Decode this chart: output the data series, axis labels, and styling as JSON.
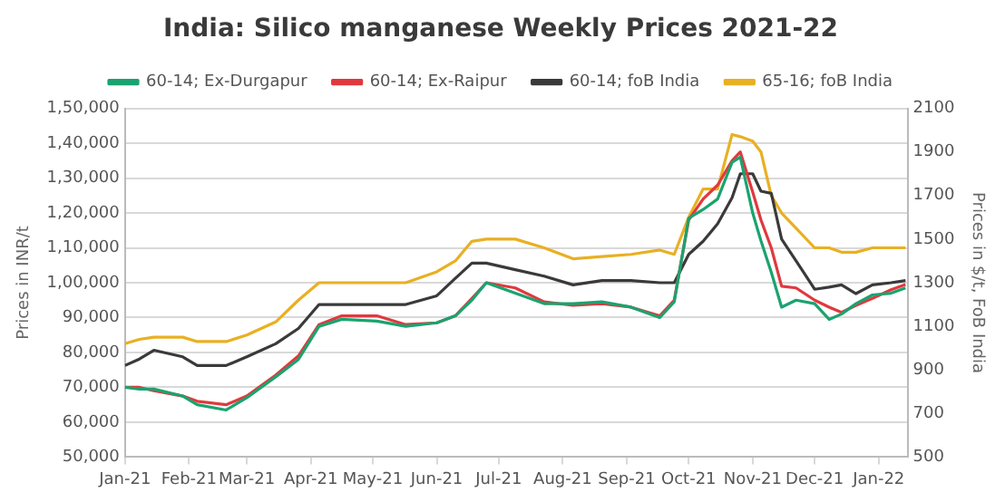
{
  "chart_data": {
    "type": "line",
    "title": "India: Silico manganese Weekly Prices 2021-22",
    "ylabel": "Prices in INR/t",
    "y2label": "Prices in $/t, FoB India",
    "x": [
      "2021-01-01",
      "2021-01-08",
      "2021-01-15",
      "2021-01-29",
      "2021-02-05",
      "2021-02-19",
      "2021-03-01",
      "2021-03-15",
      "2021-03-26",
      "2021-04-05",
      "2021-04-16",
      "2021-05-03",
      "2021-05-17",
      "2021-06-01",
      "2021-06-10",
      "2021-06-18",
      "2021-06-25",
      "2021-07-09",
      "2021-07-23",
      "2021-08-06",
      "2021-08-20",
      "2021-09-03",
      "2021-09-17",
      "2021-09-24",
      "2021-10-01",
      "2021-10-08",
      "2021-10-15",
      "2021-10-22",
      "2021-10-26",
      "2021-11-01",
      "2021-11-05",
      "2021-11-10",
      "2021-11-15",
      "2021-11-22",
      "2021-12-01",
      "2021-12-08",
      "2021-12-14",
      "2021-12-21",
      "2021-12-29",
      "2022-01-07",
      "2022-01-14"
    ],
    "series": [
      {
        "name": "60-14; Ex-Durgapur",
        "color": "#1aa36f",
        "values": [
          70000,
          69500,
          69500,
          67500,
          65000,
          63500,
          67000,
          73000,
          78000,
          87500,
          89500,
          89000,
          87500,
          88500,
          90500,
          95000,
          100000,
          97000,
          94000,
          94000,
          94500,
          93000,
          90000,
          94500,
          118500,
          121000,
          124000,
          134500,
          136000,
          120000,
          112000,
          103000,
          93000,
          95000,
          94000,
          89500,
          91000,
          94000,
          96500,
          97000,
          98500
        ]
      },
      {
        "name": "60-14; Ex-Raipur",
        "color": "#e0393e",
        "values": [
          70000,
          70000,
          69000,
          67500,
          66000,
          65000,
          67500,
          73500,
          79000,
          88000,
          90500,
          90500,
          88000,
          88500,
          90500,
          95500,
          100000,
          98500,
          94500,
          93500,
          94000,
          93000,
          90500,
          95000,
          118000,
          124000,
          128000,
          135000,
          137500,
          126000,
          118000,
          110000,
          99000,
          98500,
          95000,
          93000,
          91500,
          93500,
          95500,
          98000,
          99500
        ]
      },
      {
        "name": "60-14; foB India",
        "color": "#3a3a3a",
        "axis": "y2",
        "values": [
          920,
          950,
          990,
          960,
          920,
          920,
          960,
          1020,
          1090,
          1200,
          1200,
          1200,
          1200,
          1240,
          1320,
          1390,
          1390,
          1360,
          1330,
          1290,
          1310,
          1310,
          1300,
          1300,
          1430,
          1490,
          1570,
          1690,
          1800,
          1800,
          1720,
          1710,
          1500,
          1400,
          1270,
          1280,
          1290,
          1250,
          1290,
          1300,
          1310
        ]
      },
      {
        "name": "65-16; foB India",
        "color": "#e8b023",
        "axis": "y2",
        "values": [
          1020,
          1040,
          1050,
          1050,
          1030,
          1030,
          1060,
          1120,
          1220,
          1300,
          1300,
          1300,
          1300,
          1350,
          1400,
          1490,
          1500,
          1500,
          1460,
          1410,
          1420,
          1430,
          1450,
          1430,
          1600,
          1730,
          1730,
          1980,
          1970,
          1950,
          1900,
          1700,
          1620,
          1550,
          1460,
          1460,
          1440,
          1440,
          1460,
          1460,
          1460
        ]
      }
    ],
    "xlim": [
      "2021-01-01",
      "2022-01-15"
    ],
    "xticks": [
      {
        "value": "2021-01-01",
        "label": "Jan-21"
      },
      {
        "value": "2021-02-01",
        "label": "Feb-21"
      },
      {
        "value": "2021-03-01",
        "label": "Mar-21"
      },
      {
        "value": "2021-04-01",
        "label": "Apr-21"
      },
      {
        "value": "2021-05-01",
        "label": "May-21"
      },
      {
        "value": "2021-06-01",
        "label": "Jun-21"
      },
      {
        "value": "2021-07-01",
        "label": "Jul-21"
      },
      {
        "value": "2021-08-01",
        "label": "Aug-21"
      },
      {
        "value": "2021-09-01",
        "label": "Sep-21"
      },
      {
        "value": "2021-10-01",
        "label": "Oct-21"
      },
      {
        "value": "2021-11-01",
        "label": "Nov-21"
      },
      {
        "value": "2021-12-01",
        "label": "Dec-21"
      },
      {
        "value": "2022-01-01",
        "label": "Jan-22"
      }
    ],
    "ylim": [
      50000,
      150000
    ],
    "yticks": [
      {
        "value": 50000,
        "label": "50,000"
      },
      {
        "value": 60000,
        "label": "60,000"
      },
      {
        "value": 70000,
        "label": "70,000"
      },
      {
        "value": 80000,
        "label": "80,000"
      },
      {
        "value": 90000,
        "label": "90,000"
      },
      {
        "value": 100000,
        "label": "1,00,000"
      },
      {
        "value": 110000,
        "label": "1,10,000"
      },
      {
        "value": 120000,
        "label": "1,20,000"
      },
      {
        "value": 130000,
        "label": "1,30,000"
      },
      {
        "value": 140000,
        "label": "1,40,000"
      },
      {
        "value": 150000,
        "label": "1,50,000"
      }
    ],
    "y2lim": [
      500,
      2100
    ],
    "y2ticks": [
      500,
      700,
      900,
      1100,
      1300,
      1500,
      1700,
      1900,
      2100
    ],
    "grid": "y",
    "legend": "top",
    "marker": "none",
    "line_style": "solid"
  }
}
